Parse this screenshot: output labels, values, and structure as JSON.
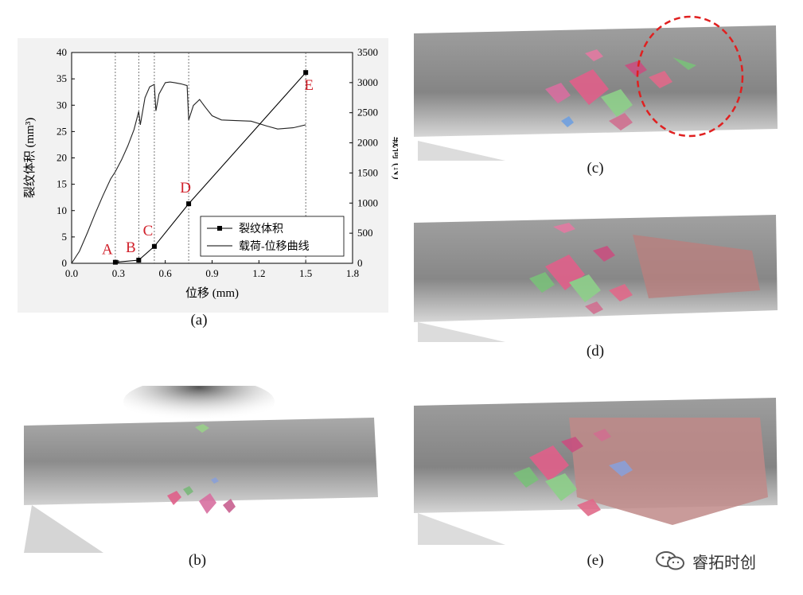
{
  "captions": {
    "a": "(a)",
    "b": "(b)",
    "c": "(c)",
    "d": "(d)",
    "e": "(e)"
  },
  "watermark": {
    "text": "睿拓时创",
    "icon": "wechat-icon"
  },
  "colors": {
    "marker_label": "#d0202a",
    "curve": "#222222",
    "highlight": "#e02020"
  },
  "chart_data": {
    "type": "line",
    "xlabel": "位移 (mm)",
    "ylabel_left": "裂纹体积 (mm³)",
    "ylabel_right": "载荷 (N)",
    "xlim": [
      0,
      1.8
    ],
    "ylim_left": [
      0,
      40
    ],
    "ylim_right": [
      0,
      3500
    ],
    "x_ticks": [
      "0.0",
      "0.3",
      "0.6",
      "0.9",
      "1.2",
      "1.5",
      "1.8"
    ],
    "y_left_ticks": [
      "0",
      "5",
      "10",
      "15",
      "20",
      "25",
      "30",
      "35",
      "40"
    ],
    "y_right_ticks": [
      "0",
      "500",
      "1000",
      "1500",
      "2000",
      "2500",
      "3000",
      "3500"
    ],
    "legend_position": "bottom-right",
    "series": [
      {
        "name": "裂纹体积",
        "axis": "left",
        "marker": "square",
        "points": [
          [
            0.28,
            0.2
          ],
          [
            0.43,
            0.6
          ],
          [
            0.53,
            3.2
          ],
          [
            0.75,
            11.3
          ],
          [
            1.5,
            36.2
          ]
        ]
      },
      {
        "name": "载荷-位移曲线",
        "axis": "right",
        "marker": "none",
        "points": [
          [
            0.0,
            0
          ],
          [
            0.05,
            200
          ],
          [
            0.1,
            500
          ],
          [
            0.15,
            820
          ],
          [
            0.2,
            1120
          ],
          [
            0.25,
            1400
          ],
          [
            0.28,
            1520
          ],
          [
            0.32,
            1720
          ],
          [
            0.36,
            1950
          ],
          [
            0.4,
            2220
          ],
          [
            0.43,
            2520
          ],
          [
            0.44,
            2300
          ],
          [
            0.47,
            2750
          ],
          [
            0.5,
            2930
          ],
          [
            0.53,
            2970
          ],
          [
            0.54,
            2530
          ],
          [
            0.56,
            2810
          ],
          [
            0.6,
            3000
          ],
          [
            0.63,
            3010
          ],
          [
            0.66,
            3000
          ],
          [
            0.7,
            2980
          ],
          [
            0.74,
            2950
          ],
          [
            0.75,
            2380
          ],
          [
            0.78,
            2620
          ],
          [
            0.82,
            2720
          ],
          [
            0.86,
            2580
          ],
          [
            0.9,
            2450
          ],
          [
            0.96,
            2380
          ],
          [
            1.05,
            2370
          ],
          [
            1.15,
            2360
          ],
          [
            1.25,
            2280
          ],
          [
            1.32,
            2230
          ],
          [
            1.42,
            2250
          ],
          [
            1.5,
            2300
          ]
        ]
      }
    ],
    "markers": [
      {
        "label": "A",
        "x": 0.28
      },
      {
        "label": "B",
        "x": 0.43
      },
      {
        "label": "C",
        "x": 0.53
      },
      {
        "label": "D",
        "x": 0.75
      },
      {
        "label": "E",
        "x": 1.5
      }
    ]
  }
}
